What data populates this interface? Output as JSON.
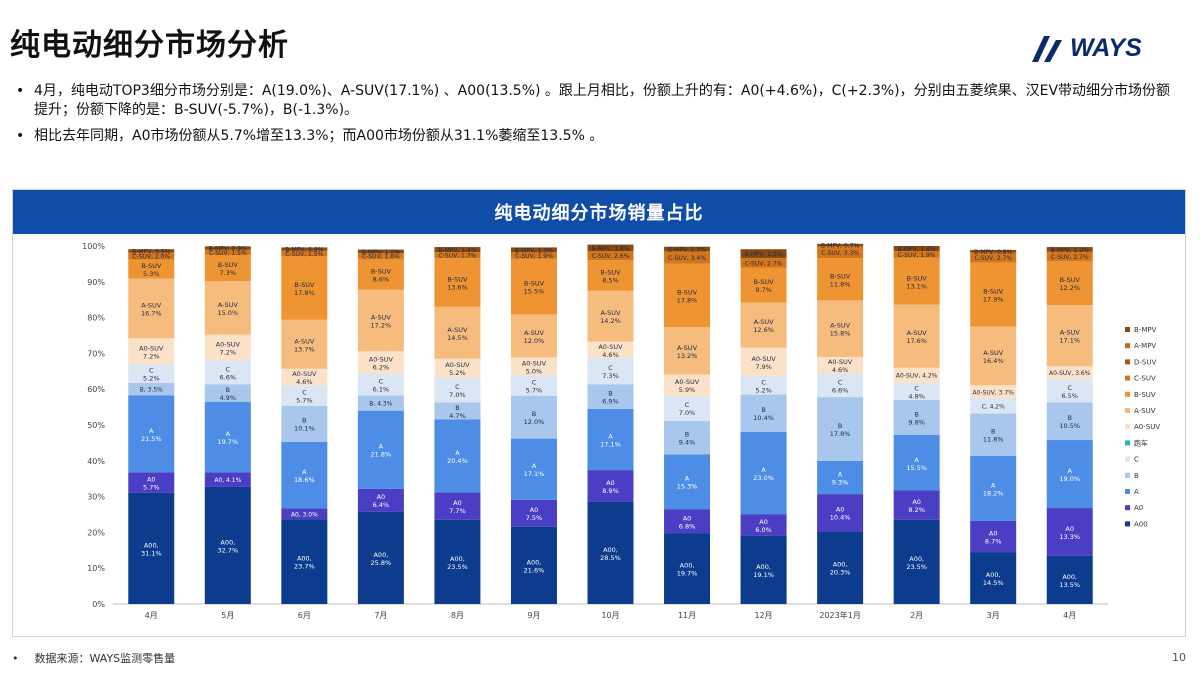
{
  "slide": {
    "title": "纯电动细分市场分析",
    "logo_text": "WAYS",
    "bullets": [
      "4月，纯电动TOP3细分市场分别是：A(19.0%)、A-SUV(17.1%) 、A00(13.5%) 。跟上月相比，份额上升的有：A0(+4.6%)，C(+2.3%)，分别由五菱缤果、汉EV带动细分市场份额提升；份额下降的是：B-SUV(-5.7%)，B(-1.3%)。",
      "相比去年同期，A0市场份额从5.7%增至13.3%；而A00市场份额从31.1%萎缩至13.5% 。"
    ],
    "source": "数据来源：WAYS监测零售量",
    "page_number": "10"
  },
  "chart_data": {
    "type": "bar",
    "stacked": true,
    "title": "纯电动细分市场销量占比",
    "categories": [
      "4月",
      "5月",
      "6月",
      "7月",
      "8月",
      "9月",
      "10月",
      "11月",
      "12月",
      "2023年1月",
      "2月",
      "3月",
      "4月"
    ],
    "ylim": [
      0,
      100
    ],
    "y_ticks": [
      "0%",
      "10%",
      "20%",
      "30%",
      "40%",
      "50%",
      "60%",
      "70%",
      "80%",
      "90%",
      "100%"
    ],
    "legend_position": "right",
    "series": [
      {
        "name": "A00",
        "color": "#0d3b8e",
        "label_prefix": "A00,",
        "text_color": "#ffffff",
        "values": [
          31.1,
          32.7,
          23.7,
          25.8,
          23.5,
          21.6,
          28.5,
          19.7,
          19.1,
          20.3,
          23.5,
          14.5,
          13.5
        ]
      },
      {
        "name": "A0",
        "color": "#4a3fc4",
        "label_prefix": "A0",
        "text_color": "#ffffff",
        "values": [
          5.7,
          4.1,
          3.0,
          6.4,
          7.7,
          7.5,
          8.9,
          6.8,
          6.0,
          10.4,
          8.2,
          8.7,
          13.3
        ]
      },
      {
        "name": "A",
        "color": "#4d8de6",
        "label_prefix": "A",
        "text_color": "#ffffff",
        "values": [
          21.5,
          19.7,
          18.6,
          21.8,
          20.4,
          17.1,
          17.1,
          15.3,
          23.0,
          9.3,
          15.5,
          18.2,
          19.0
        ]
      },
      {
        "name": "B",
        "color": "#a9c6ec",
        "label_prefix": "B",
        "text_color": "#1f2a44",
        "values": [
          3.5,
          4.9,
          10.1,
          4.3,
          4.7,
          12.0,
          6.9,
          9.4,
          10.4,
          17.8,
          9.8,
          11.8,
          10.5
        ]
      },
      {
        "name": "C",
        "color": "#dbe6f5",
        "label_prefix": "C",
        "text_color": "#1f2a44",
        "values": [
          5.2,
          6.6,
          5.7,
          6.1,
          7.0,
          5.7,
          7.3,
          7.0,
          5.2,
          6.6,
          4.8,
          4.2,
          6.5
        ]
      },
      {
        "name": "跑车",
        "color": "#2bb5a8",
        "label_prefix": "",
        "text_color": "#1f2a44",
        "values": [
          0,
          0,
          0,
          0,
          0,
          0,
          0,
          0,
          0,
          0,
          0,
          0,
          0
        ]
      },
      {
        "name": "A0-SUV",
        "color": "#fbe1c8",
        "label_prefix": "A0-SUV",
        "text_color": "#1f2a44",
        "values": [
          7.2,
          7.2,
          4.6,
          6.2,
          5.2,
          5.0,
          4.6,
          5.9,
          7.9,
          4.6,
          4.2,
          3.7,
          3.6
        ]
      },
      {
        "name": "A-SUV",
        "color": "#f6bc7e",
        "label_prefix": "A-SUV",
        "text_color": "#1f2a44",
        "values": [
          16.7,
          15.0,
          13.7,
          17.2,
          14.5,
          12.0,
          14.2,
          13.2,
          12.6,
          15.8,
          17.6,
          16.4,
          17.1
        ]
      },
      {
        "name": "B-SUV",
        "color": "#ee9432",
        "label_prefix": "B-SUV",
        "text_color": "#1f2a44",
        "values": [
          5.3,
          7.3,
          17.8,
          8.6,
          13.6,
          15.5,
          8.5,
          17.8,
          9.7,
          11.8,
          13.1,
          17.9,
          12.2
        ]
      },
      {
        "name": "C-SUV",
        "color": "#d4761b",
        "label_prefix": "C-SUV",
        "text_color": "#1f2a44",
        "values": [
          2.0,
          1.5,
          1.5,
          1.6,
          1.7,
          1.9,
          2.6,
          3.4,
          2.7,
          3.3,
          1.9,
          2.7,
          2.7
        ]
      },
      {
        "name": "D-SUV",
        "color": "#a85815",
        "label_prefix": "",
        "text_color": "#1f2a44",
        "values": [
          0,
          0,
          0,
          0,
          0,
          0,
          0,
          0,
          0,
          0,
          0,
          0,
          0
        ]
      },
      {
        "name": "A-MPV",
        "color": "#c06a20",
        "label_prefix": "",
        "text_color": "#1f2a44",
        "values": [
          0,
          0,
          0,
          0,
          0,
          0,
          0,
          0,
          0,
          0,
          0,
          0,
          0
        ]
      },
      {
        "name": "B-MPV",
        "color": "#8a4a12",
        "label_prefix": "B-MPV",
        "text_color": "#1f2a44",
        "values": [
          0.9,
          0.9,
          0.9,
          1.0,
          1.4,
          1.3,
          1.8,
          1.3,
          2.5,
          0.7,
          1.4,
          0.8,
          1.3
        ]
      }
    ]
  }
}
